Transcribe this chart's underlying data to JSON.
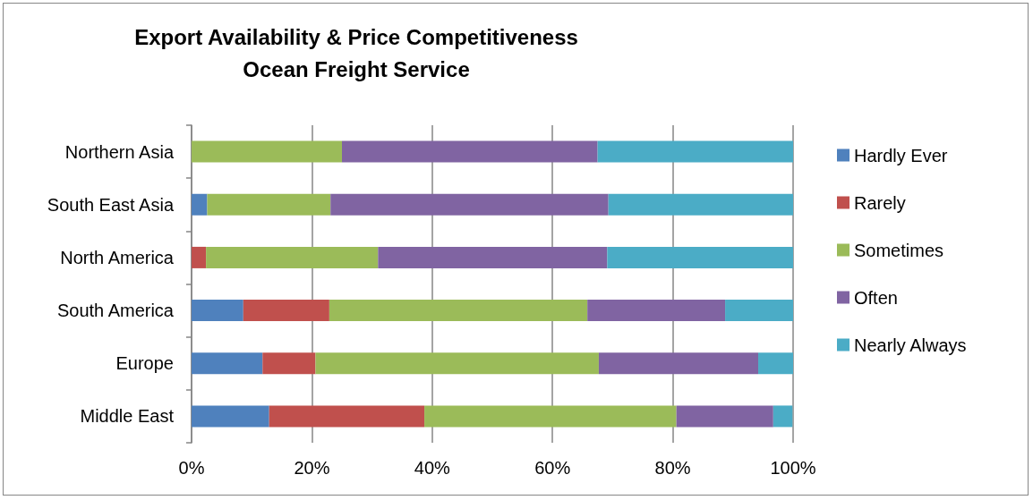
{
  "chart_data": {
    "type": "bar",
    "orientation": "horizontal",
    "stacked": true,
    "title": "Export Availability & Price Competitiveness\nOcean Freight Service",
    "categories": [
      "Northern Asia",
      "South East Asia",
      "North America",
      "South America",
      "Europe",
      "Middle East"
    ],
    "series": [
      {
        "name": "Hardly Ever",
        "color": "#4f81bd",
        "values": [
          0,
          2.6,
          0,
          8.6,
          11.8,
          12.9
        ]
      },
      {
        "name": "Rarely",
        "color": "#c0504d",
        "values": [
          0,
          0,
          2.4,
          14.3,
          8.8,
          25.8
        ]
      },
      {
        "name": "Sometimes",
        "color": "#9bbb59",
        "values": [
          25,
          20.5,
          28.6,
          42.9,
          47.1,
          41.9
        ]
      },
      {
        "name": "Often",
        "color": "#8064a2",
        "values": [
          42.5,
          46.2,
          38.1,
          22.9,
          26.5,
          16.1
        ]
      },
      {
        "name": "Nearly Always",
        "color": "#4bacc6",
        "values": [
          32.5,
          30.8,
          31.0,
          11.4,
          5.9,
          3.2
        ]
      }
    ],
    "xlim": [
      0,
      100
    ],
    "xticks": [
      {
        "value": 0,
        "label": "0%"
      },
      {
        "value": 20,
        "label": "20%"
      },
      {
        "value": 40,
        "label": "40%"
      },
      {
        "value": 60,
        "label": "60%"
      },
      {
        "value": 80,
        "label": "80%"
      },
      {
        "value": 100,
        "label": "100%"
      }
    ],
    "grid": "x",
    "legend": "right"
  }
}
